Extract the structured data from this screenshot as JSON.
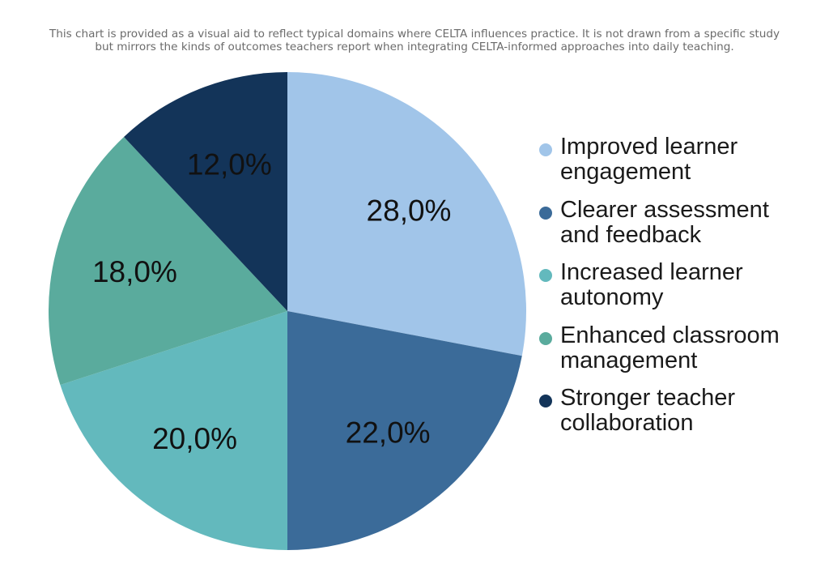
{
  "caption": {
    "line1": "This chart is provided as a visual aid to reflect typical domains where CELTA influences practice. It is not drawn from a specific study",
    "line2": "but mirrors the kinds of outcomes teachers report when integrating CELTA-informed approaches into daily teaching."
  },
  "chart_data": {
    "type": "pie",
    "title": "",
    "direction": "clockwise",
    "start": "top",
    "legend_position": "right",
    "categories": [
      "Improved learner engagement",
      "Clearer assessment and feedback",
      "Increased learner autonomy",
      "Enhanced classroom management",
      "Stronger teacher collaboration"
    ],
    "values": [
      28.0,
      22.0,
      20.0,
      18.0,
      12.0
    ],
    "data_labels": [
      "28,0%",
      "22,0%",
      "20,0%",
      "18,0%",
      "12,0%"
    ],
    "colors": [
      "#a1c5e9",
      "#3b6b99",
      "#63b9bd",
      "#5aab9d",
      "#133459"
    ]
  },
  "legend": {
    "items": [
      {
        "line1": "Improved learner",
        "line2": "engagement",
        "color": "#a1c5e9"
      },
      {
        "line1": "Clearer assessment",
        "line2": "and feedback",
        "color": "#3b6b99"
      },
      {
        "line1": "Increased learner",
        "line2": "autonomy",
        "color": "#63b9bd"
      },
      {
        "line1": "Enhanced classroom",
        "line2": "management",
        "color": "#5aab9d"
      },
      {
        "line1": "Stronger teacher",
        "line2": "collaboration",
        "color": "#133459"
      }
    ]
  }
}
